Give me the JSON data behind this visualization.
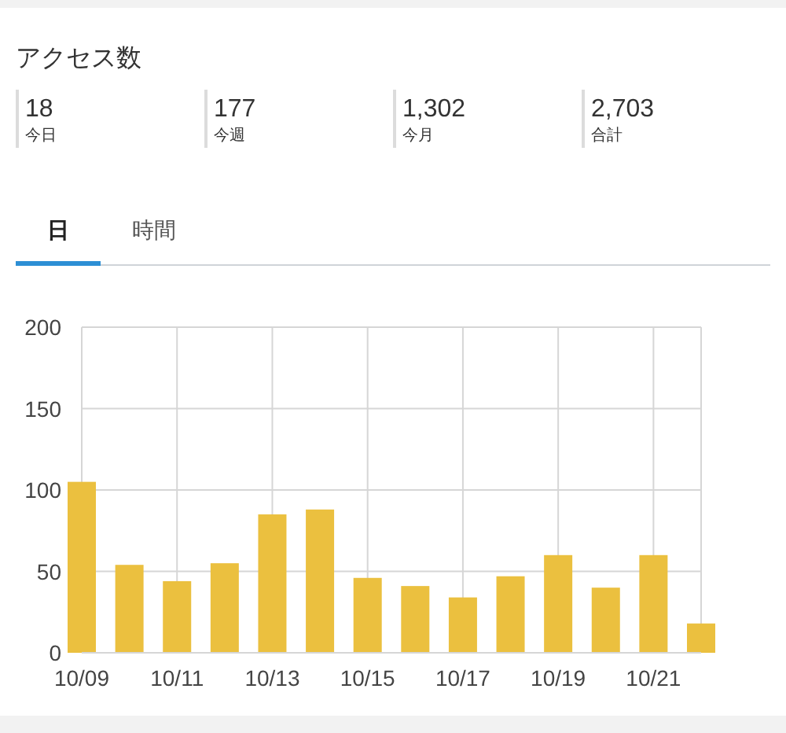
{
  "chart_data": [
    {
      "type": "other",
      "title": "アクセス数",
      "annotations": [
        "18",
        "今日",
        "177",
        "今週",
        "1,302",
        "今月",
        "2,703",
        "合計",
        "日",
        "時間"
      ]
    },
    {
      "type": "bar",
      "categories": [
        "10/09",
        null,
        "10/11",
        null,
        "10/13",
        null,
        "10/15",
        null,
        "10/17",
        null,
        "10/19",
        null,
        "10/21",
        null
      ],
      "values": [
        105,
        54,
        44,
        55,
        85,
        88,
        46,
        41,
        34,
        47,
        60,
        40,
        60,
        18
      ],
      "color": "#ebc03f",
      "ylim": [
        0,
        200
      ],
      "yticks": [
        0,
        50,
        100,
        150,
        200
      ],
      "grid": true
    }
  ]
}
